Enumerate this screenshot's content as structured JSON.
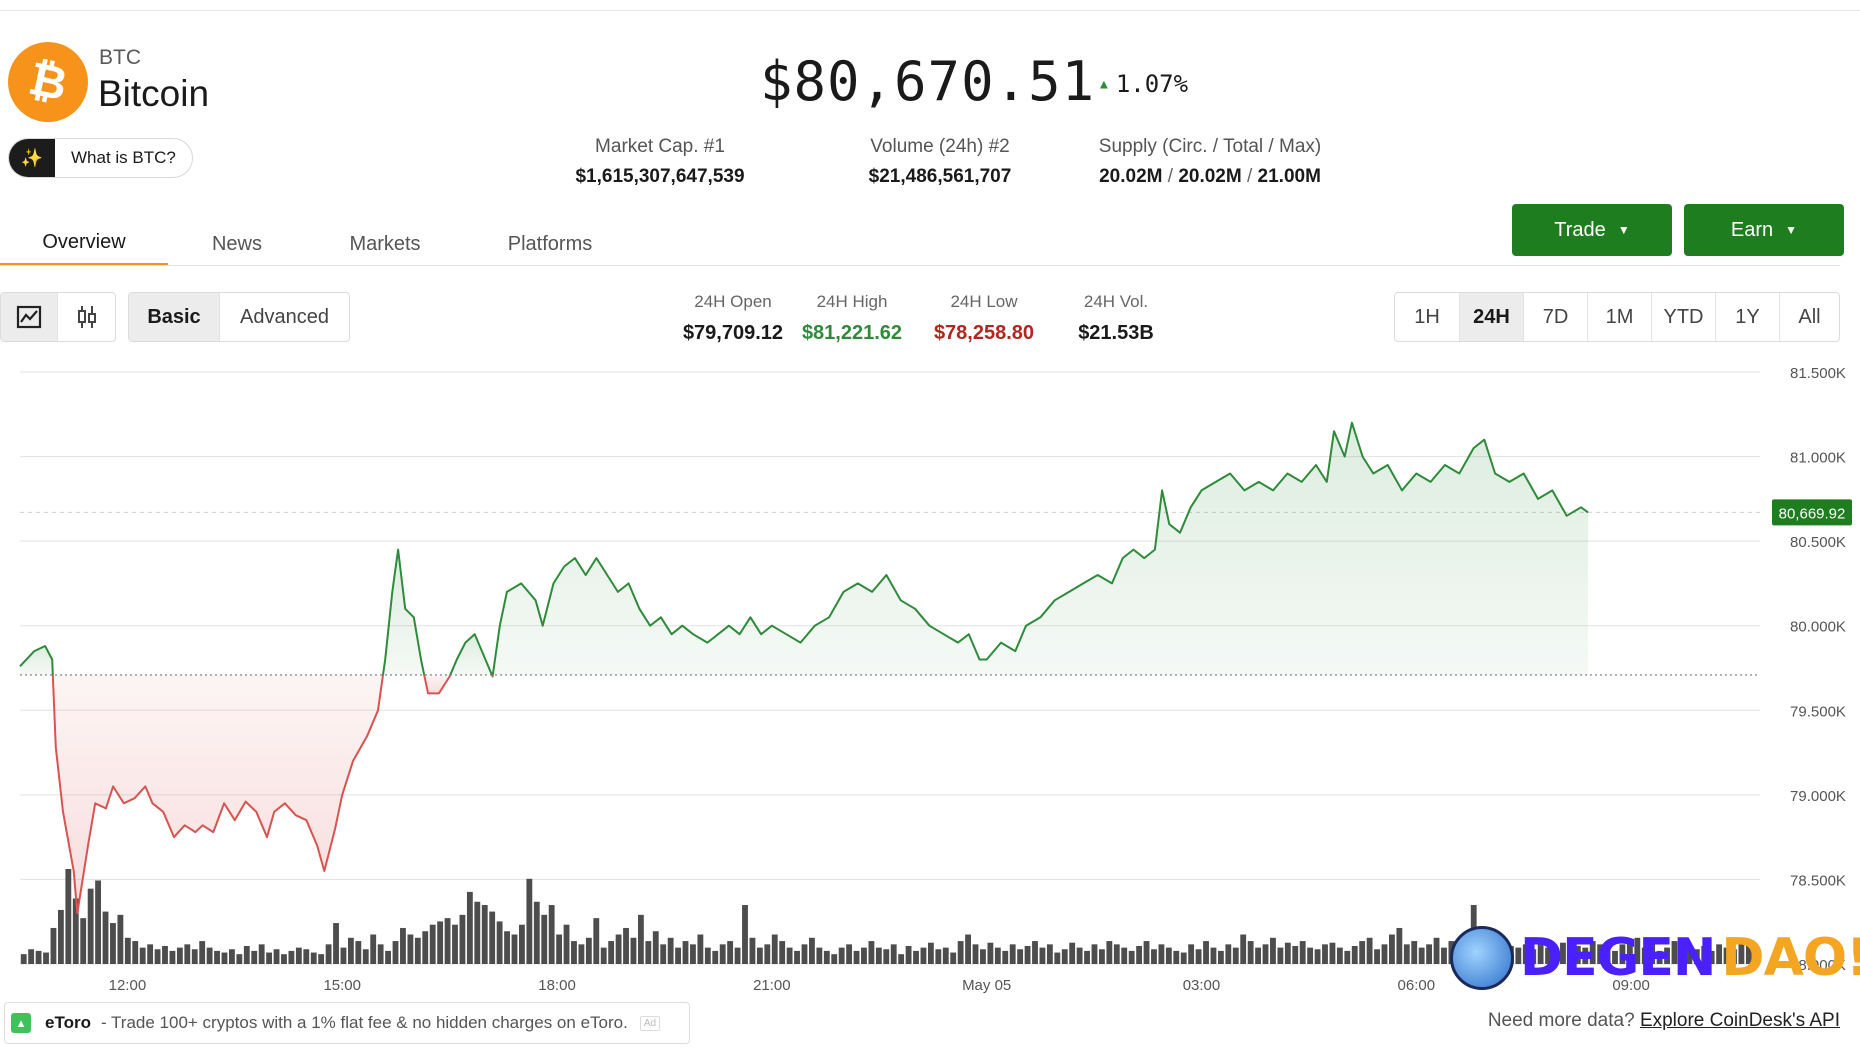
{
  "coin": {
    "ticker": "BTC",
    "name": "Bitcoin",
    "logo_glyph": "₿",
    "logo_color": "#f7931a",
    "what_is_label": "What is BTC?",
    "what_is_icon": "sparkle-icon"
  },
  "price": {
    "value": "$80,670.51",
    "change": "1.07%",
    "change_direction": "up",
    "up_color": "#2e8b3a"
  },
  "stats": {
    "market_cap_label": "Market Cap. #1",
    "market_cap_value": "$1,615,307,647,539",
    "volume_label": "Volume (24h) #2",
    "volume_value": "$21,486,561,707",
    "supply_label": "Supply (Circ. / Total / Max)",
    "supply_circ": "20.02M",
    "supply_total": "20.02M",
    "supply_max": "21.00M",
    "supply_sep": "/"
  },
  "tabs": [
    {
      "label": "Overview",
      "active": true
    },
    {
      "label": "News",
      "active": false
    },
    {
      "label": "Markets",
      "active": false
    },
    {
      "label": "Platforms",
      "active": false
    }
  ],
  "actions": {
    "trade_label": "Trade",
    "earn_label": "Earn",
    "caret_icon": "caret-down-icon",
    "button_color": "#1e7d1e"
  },
  "toolbar": {
    "chart_type_icons": [
      "line-chart-icon",
      "candlestick-icon"
    ],
    "modes": [
      {
        "label": "Basic",
        "active": true
      },
      {
        "label": "Advanced",
        "active": false
      }
    ],
    "ranges": [
      {
        "label": "1H",
        "active": false
      },
      {
        "label": "24H",
        "active": true
      },
      {
        "label": "7D",
        "active": false
      },
      {
        "label": "1M",
        "active": false
      },
      {
        "label": "YTD",
        "active": false
      },
      {
        "label": "1Y",
        "active": false
      },
      {
        "label": "All",
        "active": false
      }
    ]
  },
  "ohlc": {
    "open_label": "24H Open",
    "open_value": "$79,709.12",
    "high_label": "24H High",
    "high_value": "$81,221.62",
    "high_color": "#2e8b3a",
    "low_label": "24H Low",
    "low_value": "$78,258.80",
    "low_color": "#b3261e",
    "vol_label": "24H Vol.",
    "vol_value": "$21.53B"
  },
  "chart_data": {
    "type": "area",
    "ylim": [
      78000,
      81500
    ],
    "y_ticks": [
      {
        "value": 81500,
        "label": "81.500K"
      },
      {
        "value": 81000,
        "label": "81.000K"
      },
      {
        "value": 80500,
        "label": "80.500K"
      },
      {
        "value": 80000,
        "label": "80.000K"
      },
      {
        "value": 79500,
        "label": "79.500K"
      },
      {
        "value": 79000,
        "label": "79.000K"
      },
      {
        "value": 78500,
        "label": "78.500K"
      },
      {
        "value": 78000,
        "label": "78.000K"
      }
    ],
    "x_ticks": [
      {
        "hour": 12,
        "label": "12:00"
      },
      {
        "hour": 15,
        "label": "15:00"
      },
      {
        "hour": 18,
        "label": "18:00"
      },
      {
        "hour": 21,
        "label": "21:00"
      },
      {
        "hour": 24,
        "label": "May 05"
      },
      {
        "hour": 27,
        "label": "03:00"
      },
      {
        "hour": 30,
        "label": "06:00"
      },
      {
        "hour": 33,
        "label": "09:00"
      }
    ],
    "x_range_hours": [
      10.5,
      34.8
    ],
    "baseline": 79709.12,
    "current": {
      "value": 80669.92,
      "label": "80,669.92"
    },
    "up_color": "#2e8b3a",
    "down_color": "#d9534f",
    "series": [
      {
        "values": [
          [
            10.5,
            79760
          ],
          [
            10.7,
            79850
          ],
          [
            10.85,
            79880
          ],
          [
            10.95,
            79800
          ],
          [
            11.0,
            79280
          ],
          [
            11.1,
            78900
          ],
          [
            11.25,
            78550
          ],
          [
            11.3,
            78300
          ],
          [
            11.45,
            78700
          ],
          [
            11.55,
            78950
          ],
          [
            11.7,
            78920
          ],
          [
            11.8,
            79050
          ],
          [
            11.95,
            78950
          ],
          [
            12.1,
            78980
          ],
          [
            12.25,
            79050
          ],
          [
            12.35,
            78950
          ],
          [
            12.5,
            78900
          ],
          [
            12.65,
            78750
          ],
          [
            12.8,
            78820
          ],
          [
            12.95,
            78780
          ],
          [
            13.05,
            78820
          ],
          [
            13.2,
            78780
          ],
          [
            13.35,
            78950
          ],
          [
            13.5,
            78850
          ],
          [
            13.65,
            78960
          ],
          [
            13.8,
            78900
          ],
          [
            13.95,
            78750
          ],
          [
            14.05,
            78900
          ],
          [
            14.2,
            78950
          ],
          [
            14.35,
            78880
          ],
          [
            14.5,
            78850
          ],
          [
            14.65,
            78700
          ],
          [
            14.75,
            78550
          ],
          [
            14.9,
            78800
          ],
          [
            15.0,
            79000
          ],
          [
            15.15,
            79200
          ],
          [
            15.35,
            79350
          ],
          [
            15.5,
            79500
          ],
          [
            15.6,
            79800
          ],
          [
            15.7,
            80200
          ],
          [
            15.78,
            80450
          ],
          [
            15.88,
            80100
          ],
          [
            16.0,
            80050
          ],
          [
            16.1,
            79800
          ],
          [
            16.2,
            79600
          ],
          [
            16.35,
            79600
          ],
          [
            16.5,
            79700
          ],
          [
            16.6,
            79800
          ],
          [
            16.72,
            79900
          ],
          [
            16.85,
            79950
          ],
          [
            16.95,
            79850
          ],
          [
            17.05,
            79750
          ],
          [
            17.1,
            79700
          ],
          [
            17.2,
            80000
          ],
          [
            17.3,
            80200
          ],
          [
            17.5,
            80250
          ],
          [
            17.7,
            80150
          ],
          [
            17.8,
            80000
          ],
          [
            17.95,
            80250
          ],
          [
            18.1,
            80350
          ],
          [
            18.25,
            80400
          ],
          [
            18.4,
            80300
          ],
          [
            18.55,
            80400
          ],
          [
            18.7,
            80300
          ],
          [
            18.85,
            80200
          ],
          [
            19.0,
            80250
          ],
          [
            19.15,
            80100
          ],
          [
            19.3,
            80000
          ],
          [
            19.45,
            80050
          ],
          [
            19.6,
            79950
          ],
          [
            19.75,
            80000
          ],
          [
            19.9,
            79950
          ],
          [
            20.1,
            79900
          ],
          [
            20.25,
            79950
          ],
          [
            20.4,
            80000
          ],
          [
            20.55,
            79950
          ],
          [
            20.7,
            80050
          ],
          [
            20.85,
            79950
          ],
          [
            21.0,
            80000
          ],
          [
            21.2,
            79950
          ],
          [
            21.4,
            79900
          ],
          [
            21.6,
            80000
          ],
          [
            21.8,
            80050
          ],
          [
            22.0,
            80200
          ],
          [
            22.2,
            80250
          ],
          [
            22.4,
            80200
          ],
          [
            22.6,
            80300
          ],
          [
            22.8,
            80150
          ],
          [
            23.0,
            80100
          ],
          [
            23.2,
            80000
          ],
          [
            23.4,
            79950
          ],
          [
            23.6,
            79900
          ],
          [
            23.75,
            79950
          ],
          [
            23.9,
            79800
          ],
          [
            24.0,
            79800
          ],
          [
            24.2,
            79900
          ],
          [
            24.4,
            79850
          ],
          [
            24.55,
            80000
          ],
          [
            24.75,
            80050
          ],
          [
            24.95,
            80150
          ],
          [
            25.15,
            80200
          ],
          [
            25.35,
            80250
          ],
          [
            25.55,
            80300
          ],
          [
            25.75,
            80250
          ],
          [
            25.9,
            80400
          ],
          [
            26.05,
            80450
          ],
          [
            26.2,
            80400
          ],
          [
            26.35,
            80450
          ],
          [
            26.45,
            80800
          ],
          [
            26.55,
            80600
          ],
          [
            26.7,
            80550
          ],
          [
            26.85,
            80700
          ],
          [
            27.0,
            80800
          ],
          [
            27.2,
            80850
          ],
          [
            27.4,
            80900
          ],
          [
            27.6,
            80800
          ],
          [
            27.8,
            80850
          ],
          [
            28.0,
            80800
          ],
          [
            28.2,
            80900
          ],
          [
            28.4,
            80850
          ],
          [
            28.6,
            80950
          ],
          [
            28.75,
            80850
          ],
          [
            28.85,
            81150
          ],
          [
            29.0,
            81000
          ],
          [
            29.1,
            81200
          ],
          [
            29.25,
            81000
          ],
          [
            29.4,
            80900
          ],
          [
            29.6,
            80950
          ],
          [
            29.8,
            80800
          ],
          [
            30.0,
            80900
          ],
          [
            30.2,
            80850
          ],
          [
            30.4,
            80950
          ],
          [
            30.6,
            80900
          ],
          [
            30.8,
            81050
          ],
          [
            30.95,
            81100
          ],
          [
            31.1,
            80900
          ],
          [
            31.3,
            80850
          ],
          [
            31.5,
            80900
          ],
          [
            31.7,
            80750
          ],
          [
            31.9,
            80800
          ],
          [
            32.1,
            80650
          ],
          [
            32.3,
            80700
          ],
          [
            32.4,
            80669.92
          ]
        ]
      }
    ],
    "volume": [
      6,
      9,
      8,
      7,
      22,
      33,
      58,
      40,
      28,
      46,
      51,
      32,
      25,
      30,
      16,
      14,
      10,
      12,
      9,
      11,
      8,
      10,
      12,
      9,
      14,
      10,
      8,
      7,
      9,
      6,
      11,
      8,
      12,
      7,
      9,
      6,
      8,
      10,
      9,
      7,
      6,
      12,
      25,
      10,
      16,
      14,
      9,
      18,
      12,
      8,
      14,
      22,
      18,
      16,
      20,
      24,
      26,
      28,
      24,
      30,
      44,
      38,
      36,
      32,
      26,
      20,
      18,
      24,
      52,
      38,
      30,
      36,
      18,
      24,
      14,
      12,
      16,
      28,
      10,
      14,
      18,
      22,
      16,
      30,
      14,
      20,
      12,
      16,
      10,
      14,
      12,
      18,
      10,
      8,
      12,
      14,
      10,
      36,
      16,
      10,
      12,
      18,
      14,
      10,
      8,
      12,
      16,
      10,
      8,
      6,
      10,
      12,
      8,
      10,
      14,
      10,
      9,
      12,
      6,
      11,
      8,
      10,
      13,
      9,
      10,
      7,
      14,
      18,
      12,
      9,
      13,
      10,
      8,
      12,
      9,
      11,
      14,
      10,
      12,
      7,
      9,
      13,
      10,
      8,
      12,
      9,
      14,
      12,
      10,
      8,
      11,
      14,
      9,
      12,
      10,
      8,
      7,
      12,
      9,
      14,
      10,
      8,
      12,
      10,
      18,
      14,
      10,
      12,
      16,
      10,
      13,
      11,
      14,
      10,
      9,
      12,
      13,
      10,
      8,
      11,
      14,
      16,
      9,
      12,
      18,
      22,
      12,
      14,
      10,
      12,
      16,
      10,
      14,
      12,
      10,
      36,
      16,
      12,
      10,
      14,
      11,
      10,
      12,
      9,
      14,
      10,
      8,
      13,
      16,
      11,
      10,
      14,
      12,
      10,
      8,
      12,
      14,
      16,
      10,
      12,
      8,
      10,
      14,
      12,
      10,
      9,
      11,
      8,
      12,
      10,
      9,
      12,
      11,
      10
    ],
    "x_tick_labels_color": "#555",
    "grid": true
  },
  "footer": {
    "ad_brand": "eToro",
    "ad_icon": "etoro-icon",
    "ad_message": "- Trade 100+ cryptos with a 1% flat fee & no hidden charges on eToro.",
    "ad_tag": "Ad",
    "more_text": "Need more data?",
    "more_link": "Explore CoinDesk's API"
  },
  "watermark": {
    "part1": "DEGEN",
    "part2": "DAO!",
    "icon": "mascot-face-icon"
  }
}
